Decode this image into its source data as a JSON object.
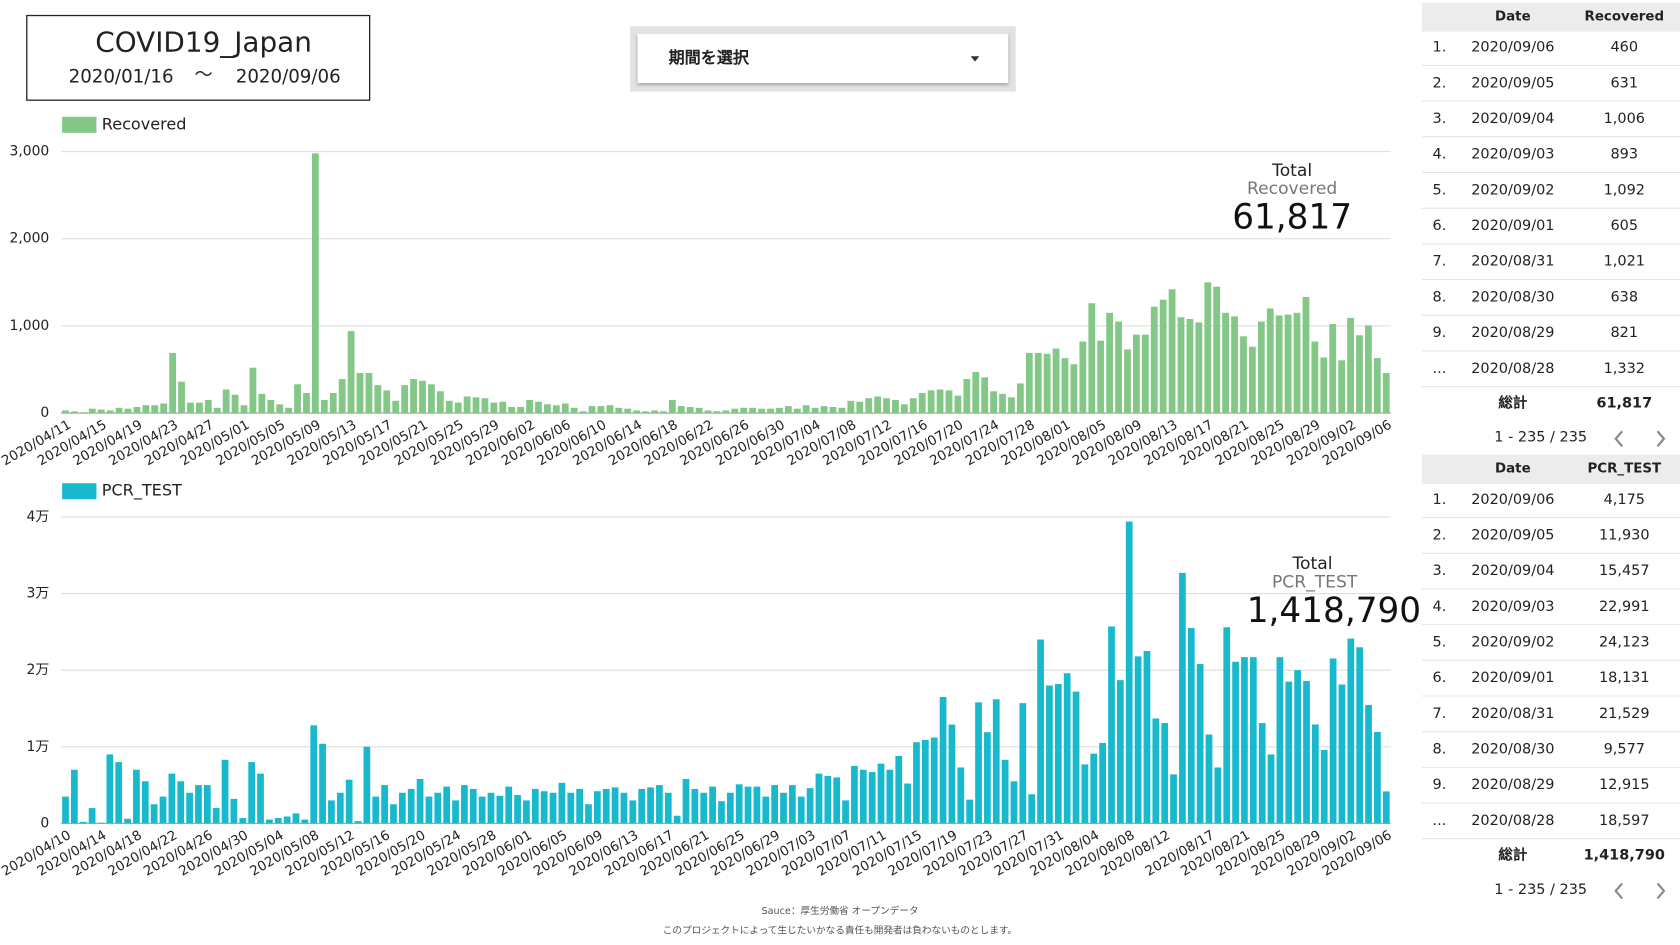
{
  "header": {
    "title": "COVID19_Japan",
    "date_from": "2020/01/16",
    "separator": "〜",
    "date_to": "2020/09/06"
  },
  "dropdown": {
    "label": "期間を選択"
  },
  "chart_data": [
    {
      "type": "bar",
      "series": [
        {
          "name": "Recovered",
          "color": "#84c887",
          "values": [
            30,
            20,
            10,
            50,
            40,
            30,
            60,
            50,
            70,
            90,
            90,
            110,
            690,
            360,
            120,
            120,
            150,
            60,
            270,
            210,
            90,
            520,
            220,
            150,
            100,
            60,
            330,
            230,
            2980,
            150,
            230,
            390,
            940,
            460,
            460,
            320,
            260,
            140,
            320,
            390,
            370,
            330,
            250,
            140,
            120,
            190,
            180,
            170,
            120,
            130,
            70,
            70,
            150,
            130,
            100,
            90,
            110,
            60,
            20,
            80,
            80,
            90,
            60,
            50,
            30,
            20,
            30,
            20,
            150,
            80,
            70,
            60,
            30,
            20,
            30,
            50,
            60,
            60,
            50,
            50,
            60,
            80,
            50,
            90,
            60,
            80,
            70,
            60,
            140,
            130,
            170,
            190,
            170,
            150,
            100,
            170,
            230,
            260,
            270,
            260,
            200,
            390,
            470,
            410,
            250,
            220,
            180,
            340,
            690,
            690,
            680,
            740,
            630,
            560,
            820,
            1260,
            830,
            1150,
            1050,
            730,
            900,
            900,
            1220,
            1300,
            1420,
            1100,
            1080,
            1040,
            1500,
            1450,
            1150,
            1110,
            880,
            760,
            1050,
            1200,
            1120,
            1130,
            1150,
            1332,
            821,
            638,
            1021,
            605,
            1092,
            893,
            1006,
            631,
            460
          ]
        }
      ],
      "categories": [
        "2020/04/11",
        null,
        null,
        null,
        "2020/04/15",
        null,
        null,
        null,
        "2020/04/19",
        null,
        null,
        null,
        "2020/04/23",
        null,
        null,
        null,
        "2020/04/27",
        null,
        null,
        null,
        "2020/05/01",
        null,
        null,
        null,
        "2020/05/05",
        null,
        null,
        null,
        "2020/05/09",
        null,
        null,
        null,
        "2020/05/13",
        null,
        null,
        null,
        "2020/05/17",
        null,
        null,
        null,
        "2020/05/21",
        null,
        null,
        null,
        "2020/05/25",
        null,
        null,
        null,
        "2020/05/29",
        null,
        null,
        null,
        "2020/06/02",
        null,
        null,
        null,
        "2020/06/06",
        null,
        null,
        null,
        "2020/06/10",
        null,
        null,
        null,
        "2020/06/14",
        null,
        null,
        null,
        "2020/06/18",
        null,
        null,
        null,
        "2020/06/22",
        null,
        null,
        null,
        "2020/06/26",
        null,
        null,
        null,
        "2020/06/30",
        null,
        null,
        null,
        "2020/07/04",
        null,
        null,
        null,
        "2020/07/08",
        null,
        null,
        null,
        "2020/07/12",
        null,
        null,
        null,
        "2020/07/16",
        null,
        null,
        null,
        "2020/07/20",
        null,
        null,
        null,
        "2020/07/24",
        null,
        null,
        null,
        "2020/07/28",
        null,
        null,
        null,
        "2020/08/01",
        null,
        null,
        null,
        "2020/08/05",
        null,
        null,
        null,
        "2020/08/09",
        null,
        null,
        null,
        "2020/08/13",
        null,
        null,
        null,
        "2020/08/17",
        null,
        null,
        null,
        "2020/08/21",
        null,
        null,
        null,
        "2020/08/25",
        null,
        null,
        null,
        "2020/08/29",
        null,
        null,
        null,
        "2020/09/02",
        null,
        null,
        null,
        "2020/09/06"
      ],
      "ylim": [
        0,
        3000
      ],
      "yticks": [
        0,
        {
          "value": 1000,
          "label": "1,000"
        },
        {
          "value": 2000,
          "label": "2,000"
        },
        {
          "value": 3000,
          "label": "3,000"
        }
      ],
      "grid": true,
      "annotation": {
        "title": "Total",
        "metric": "Recovered",
        "value": "61,817"
      }
    },
    {
      "type": "bar",
      "series": [
        {
          "name": "PCR_TEST",
          "color": "#19b9cd",
          "values": [
            3500,
            7000,
            200,
            2000,
            100,
            9000,
            8000,
            600,
            7000,
            5500,
            2500,
            3500,
            6500,
            5500,
            4000,
            5000,
            5000,
            2000,
            8300,
            3200,
            700,
            8000,
            6500,
            500,
            700,
            900,
            1300,
            500,
            12800,
            10400,
            3000,
            4000,
            5700,
            300,
            10000,
            3500,
            5000,
            2500,
            4000,
            4500,
            5800,
            3500,
            4000,
            4800,
            3000,
            5000,
            4500,
            3500,
            4000,
            3600,
            4800,
            3700,
            3000,
            4500,
            4200,
            4000,
            5300,
            4000,
            4500,
            2500,
            4200,
            4500,
            4700,
            4000,
            3000,
            4500,
            4700,
            5000,
            4000,
            1000,
            5800,
            4500,
            4000,
            4800,
            2900,
            4000,
            5100,
            4800,
            4800,
            3500,
            5000,
            4000,
            5000,
            3500,
            4600,
            6500,
            6200,
            6000,
            3000,
            7500,
            7000,
            6700,
            7800,
            7000,
            8800,
            5200,
            10600,
            10900,
            11200,
            16500,
            12900,
            7300,
            3100,
            15800,
            11900,
            16200,
            8300,
            5500,
            15700,
            3800,
            24000,
            18000,
            18200,
            19600,
            17200,
            7700,
            9100,
            10500,
            25700,
            18700,
            39400,
            21800,
            22500,
            13700,
            13100,
            6400,
            32700,
            25500,
            20800,
            11600,
            7300,
            25600,
            21100,
            21700,
            21700,
            13100,
            9000,
            21700,
            18500,
            20000,
            18597,
            12915,
            9577,
            21529,
            18131,
            24123,
            22991,
            15457,
            11930,
            4175
          ]
        }
      ],
      "categories": [
        "2020/04/10",
        null,
        null,
        null,
        "2020/04/14",
        null,
        null,
        null,
        "2020/04/18",
        null,
        null,
        null,
        "2020/04/22",
        null,
        null,
        null,
        "2020/04/26",
        null,
        null,
        null,
        "2020/04/30",
        null,
        null,
        null,
        "2020/05/04",
        null,
        null,
        null,
        "2020/05/08",
        null,
        null,
        null,
        "2020/05/12",
        null,
        null,
        null,
        "2020/05/16",
        null,
        null,
        null,
        "2020/05/20",
        null,
        null,
        null,
        "2020/05/24",
        null,
        null,
        null,
        "2020/05/28",
        null,
        null,
        null,
        "2020/06/01",
        null,
        null,
        null,
        "2020/06/05",
        null,
        null,
        null,
        "2020/06/09",
        null,
        null,
        null,
        "2020/06/13",
        null,
        null,
        null,
        "2020/06/17",
        null,
        null,
        null,
        "2020/06/21",
        null,
        null,
        null,
        "2020/06/25",
        null,
        null,
        null,
        "2020/06/29",
        null,
        null,
        null,
        "2020/07/03",
        null,
        null,
        null,
        "2020/07/07",
        null,
        null,
        null,
        "2020/07/11",
        null,
        null,
        null,
        "2020/07/15",
        null,
        null,
        null,
        "2020/07/19",
        null,
        null,
        null,
        "2020/07/23",
        null,
        null,
        null,
        "2020/07/27",
        null,
        null,
        null,
        "2020/07/31",
        null,
        null,
        null,
        "2020/08/04",
        null,
        null,
        null,
        "2020/08/08",
        null,
        null,
        null,
        "2020/08/12",
        null,
        null,
        null,
        null,
        "2020/08/17",
        null,
        null,
        null,
        "2020/08/21",
        null,
        null,
        null,
        "2020/08/25",
        null,
        null,
        null,
        "2020/08/29",
        null,
        null,
        null,
        "2020/09/02",
        null,
        null,
        null,
        "2020/09/06"
      ],
      "ylim": [
        0,
        40000
      ],
      "yticks": [
        0,
        {
          "value": 10000,
          "label": "1万"
        },
        {
          "value": 20000,
          "label": "2万"
        },
        {
          "value": 30000,
          "label": "3万"
        },
        {
          "value": 40000,
          "label": "4万"
        }
      ],
      "grid": true,
      "annotation": {
        "title": "Total",
        "metric": "PCR_TEST",
        "value": "1,418,790"
      }
    }
  ],
  "tables": [
    {
      "columns": [
        "Date",
        "Recovered"
      ],
      "rows": [
        [
          "1.",
          "2020/09/06",
          "460"
        ],
        [
          "2.",
          "2020/09/05",
          "631"
        ],
        [
          "3.",
          "2020/09/04",
          "1,006"
        ],
        [
          "4.",
          "2020/09/03",
          "893"
        ],
        [
          "5.",
          "2020/09/02",
          "1,092"
        ],
        [
          "6.",
          "2020/09/01",
          "605"
        ],
        [
          "7.",
          "2020/08/31",
          "1,021"
        ],
        [
          "8.",
          "2020/08/30",
          "638"
        ],
        [
          "9.",
          "2020/08/29",
          "821"
        ],
        [
          "...",
          "2020/08/28",
          "1,332"
        ]
      ],
      "total_label": "総計",
      "total_value": "61,817",
      "pagination": "1 - 235 / 235"
    },
    {
      "columns": [
        "Date",
        "PCR_TEST"
      ],
      "rows": [
        [
          "1.",
          "2020/09/06",
          "4,175"
        ],
        [
          "2.",
          "2020/09/05",
          "11,930"
        ],
        [
          "3.",
          "2020/09/04",
          "15,457"
        ],
        [
          "4.",
          "2020/09/03",
          "22,991"
        ],
        [
          "5.",
          "2020/09/02",
          "24,123"
        ],
        [
          "6.",
          "2020/09/01",
          "18,131"
        ],
        [
          "7.",
          "2020/08/31",
          "21,529"
        ],
        [
          "8.",
          "2020/08/30",
          "9,577"
        ],
        [
          "9.",
          "2020/08/29",
          "12,915"
        ],
        [
          "...",
          "2020/08/28",
          "18,597"
        ]
      ],
      "total_label": "総計",
      "total_value": "1,418,790",
      "pagination": "1 - 235 / 235"
    }
  ],
  "footer": {
    "source": "Sauce：厚生労働省 オープンデータ",
    "disclaimer": "このプロジェクトによって生じたいかなる責任も開発者は負わないものとします。"
  }
}
